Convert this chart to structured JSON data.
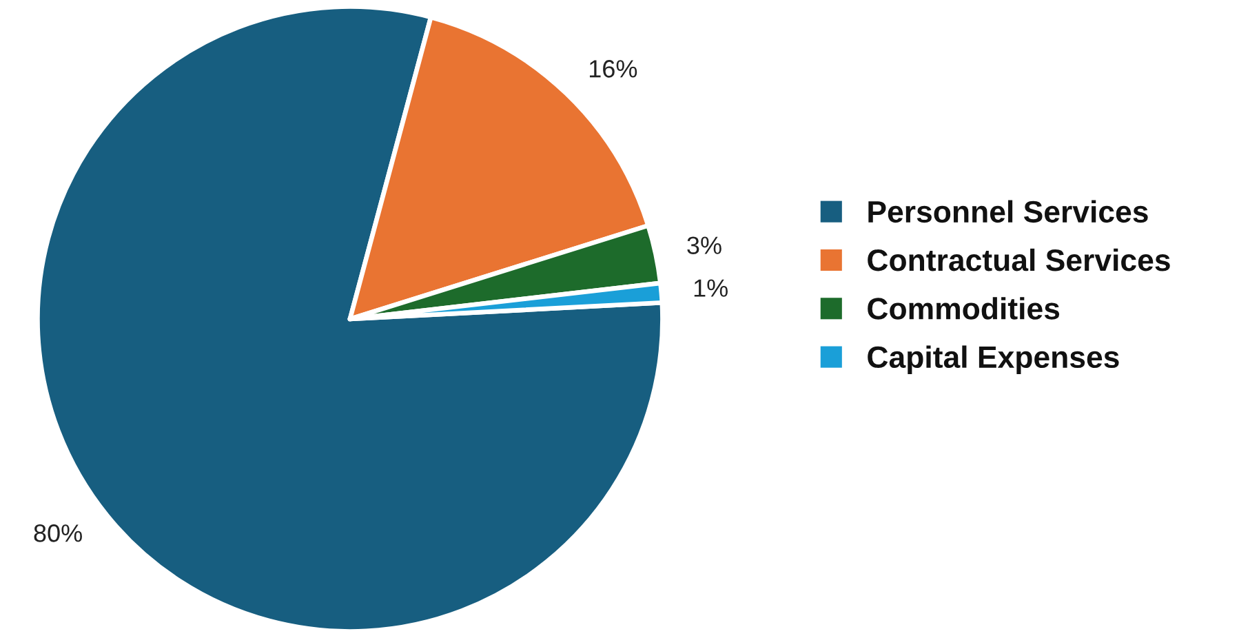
{
  "chart_data": {
    "type": "pie",
    "categories": [
      "Personnel Services",
      "Contractual Services",
      "Commodities",
      "Capital Expenses"
    ],
    "values": [
      80,
      16,
      3,
      1
    ],
    "colors": [
      "#175e80",
      "#e97432",
      "#1d6b2b",
      "#1a9fd8"
    ],
    "value_labels": [
      "80%",
      "16%",
      "3%",
      "1%"
    ],
    "legend": "right"
  }
}
